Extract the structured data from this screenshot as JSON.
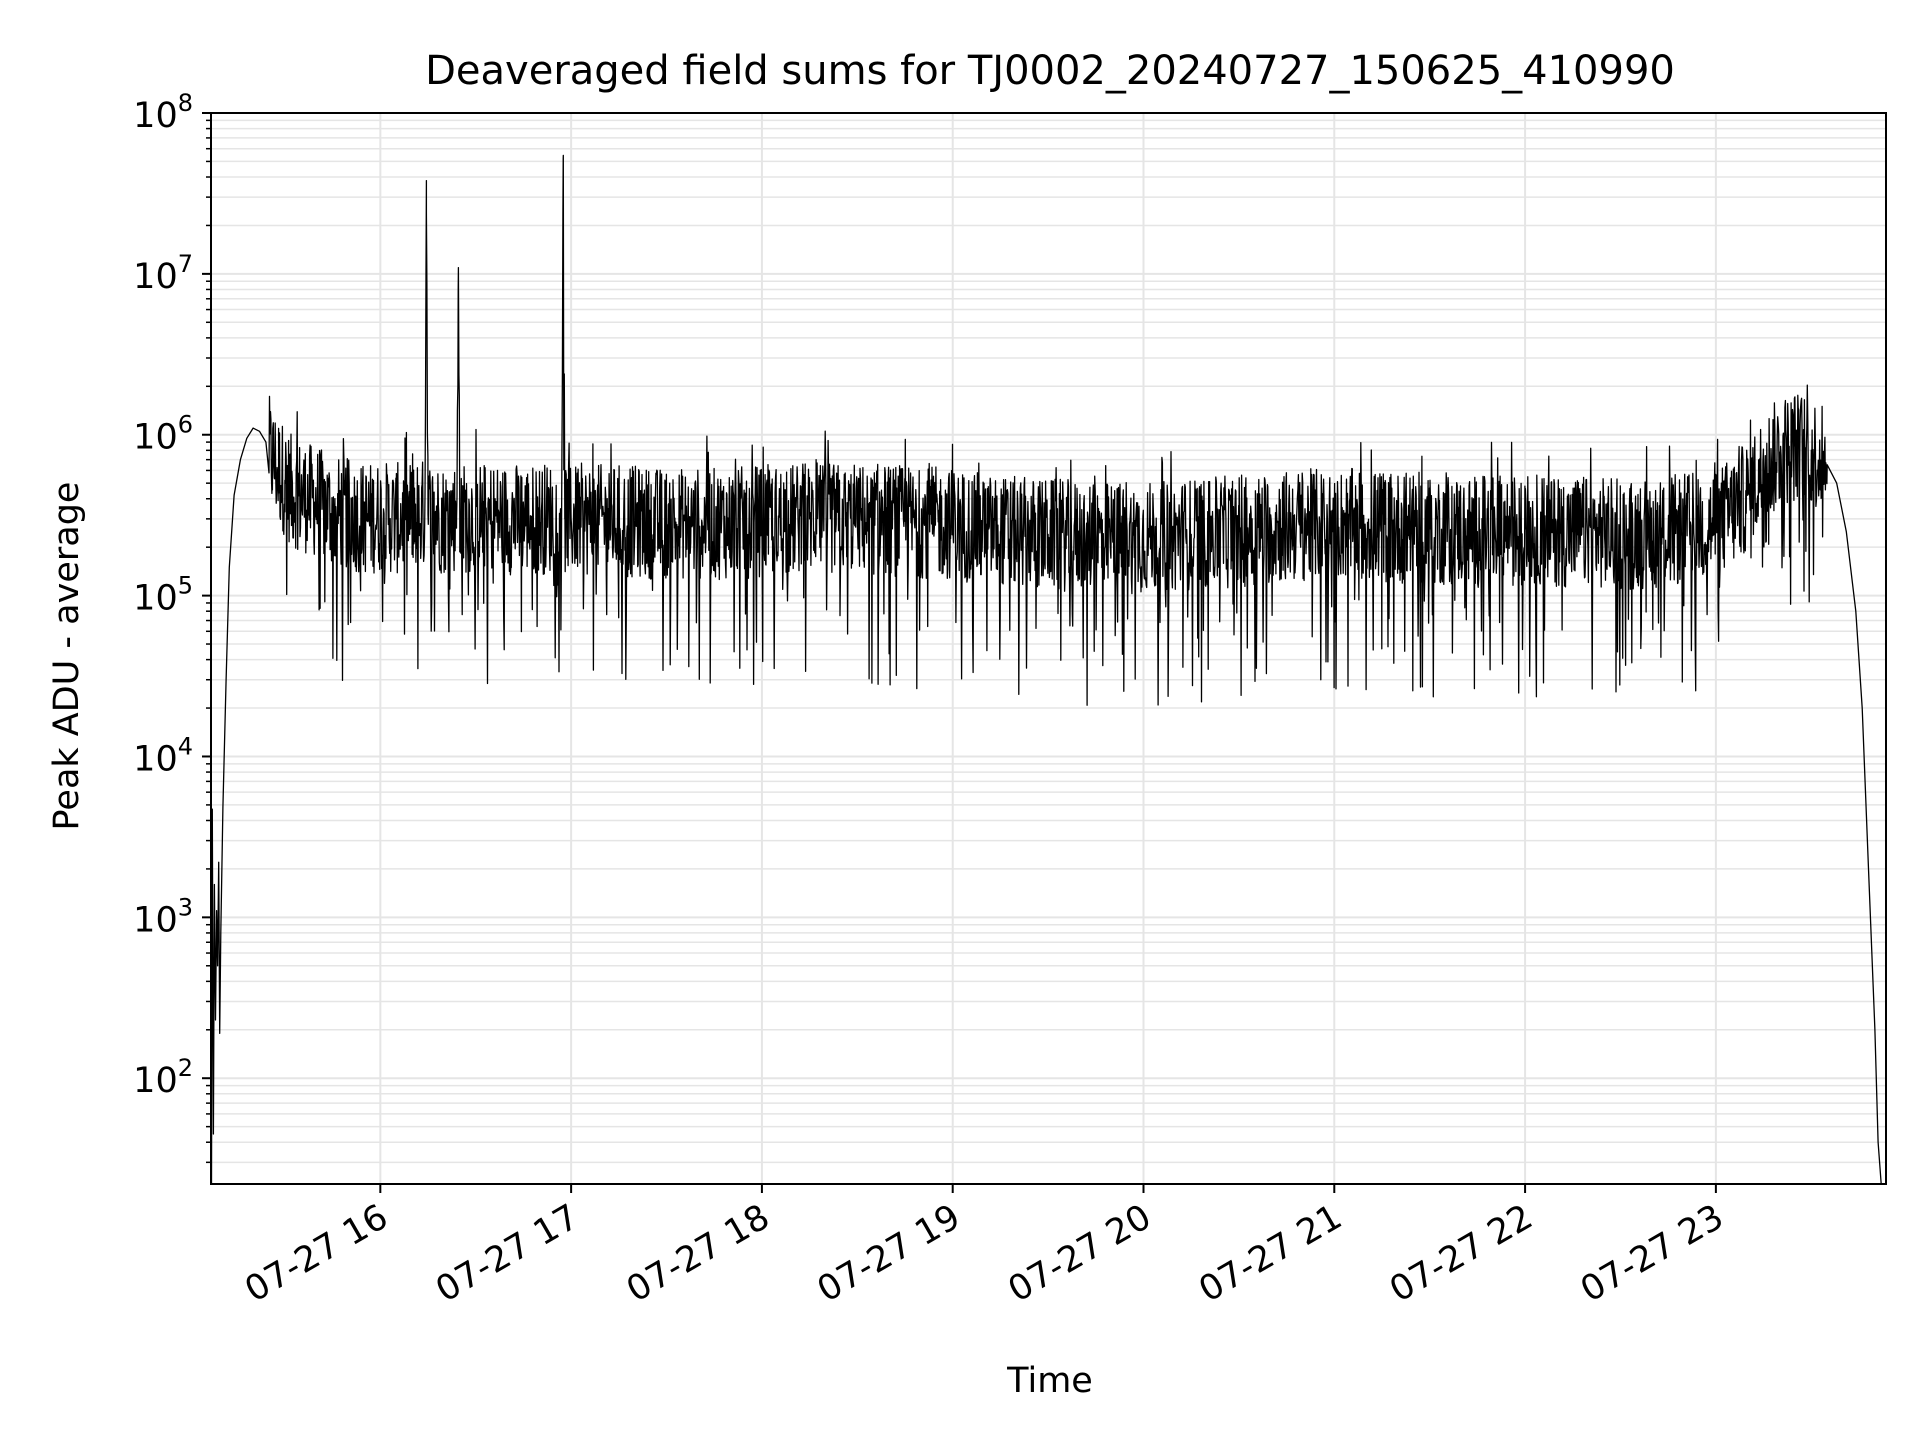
{
  "chart_data": {
    "type": "line",
    "title": "Deaveraged field sums for TJ0002_20240727_150625_410990",
    "xlabel": "Time",
    "ylabel": "Peak ADU - average",
    "yscale": "log",
    "ylim": [
      22,
      100000000
    ],
    "xlim": [
      "2024-07-27 15:06:45",
      "2024-07-27 23:53:30"
    ],
    "grid": true,
    "line_color": "#000000",
    "grid_color": "#e5e5e5",
    "x_ticks": [
      {
        "value": "2024-07-27 16:00",
        "label": "07-27 16"
      },
      {
        "value": "2024-07-27 17:00",
        "label": "07-27 17"
      },
      {
        "value": "2024-07-27 18:00",
        "label": "07-27 18"
      },
      {
        "value": "2024-07-27 19:00",
        "label": "07-27 19"
      },
      {
        "value": "2024-07-27 20:00",
        "label": "07-27 20"
      },
      {
        "value": "2024-07-27 21:00",
        "label": "07-27 21"
      },
      {
        "value": "2024-07-27 22:00",
        "label": "07-27 22"
      },
      {
        "value": "2024-07-27 23:00",
        "label": "07-27 23"
      }
    ],
    "y_ticks": [
      {
        "value": 100,
        "base": "10",
        "exp": "2"
      },
      {
        "value": 1000,
        "base": "10",
        "exp": "3"
      },
      {
        "value": 10000,
        "base": "10",
        "exp": "4"
      },
      {
        "value": 100000,
        "base": "10",
        "exp": "5"
      },
      {
        "value": 1000000,
        "base": "10",
        "exp": "6"
      },
      {
        "value": 10000000,
        "base": "10",
        "exp": "7"
      },
      {
        "value": 100000000,
        "base": "10",
        "exp": "8"
      }
    ],
    "series": [
      {
        "x": [
          "2024-07-27 15:06:55",
          "2024-07-27 15:07:10",
          "2024-07-27 15:07:30",
          "2024-07-27 15:07:50",
          "2024-07-27 15:08:10",
          "2024-07-27 15:08:30",
          "2024-07-27 15:08:50",
          "2024-07-27 15:09:10",
          "2024-07-27 15:09:30",
          "2024-07-27 15:09:50",
          "2024-07-27 15:10:30",
          "2024-07-27 15:11:30",
          "2024-07-27 15:12:30",
          "2024-07-27 15:14:00",
          "2024-07-27 15:16:00",
          "2024-07-27 15:18:00",
          "2024-07-27 15:20:00",
          "2024-07-27 15:22:00",
          "2024-07-27 15:24:00",
          "2024-07-27 15:26:00",
          "2024-07-27 15:28:00",
          "2024-07-27 15:30:00",
          "2024-07-27 15:32:00",
          "2024-07-27 15:35:00",
          "2024-07-27 15:40:00",
          "2024-07-27 15:45:00",
          "2024-07-27 15:50:00",
          "2024-07-27 15:55:00",
          "2024-07-27 16:00:00",
          "2024-07-27 16:05:00",
          "2024-07-27 16:10:00",
          "2024-07-27 16:14:00",
          "2024-07-27 16:14:30",
          "2024-07-27 16:15:00",
          "2024-07-27 16:20:00",
          "2024-07-27 16:24:00",
          "2024-07-27 16:24:30",
          "2024-07-27 16:25:00",
          "2024-07-27 16:30:00",
          "2024-07-27 16:40:00",
          "2024-07-27 16:50:00",
          "2024-07-27 16:57:00",
          "2024-07-27 16:57:30",
          "2024-07-27 16:58:00",
          "2024-07-27 17:00:00",
          "2024-07-27 17:15:00",
          "2024-07-27 17:30:00",
          "2024-07-27 17:45:00",
          "2024-07-27 18:00:00",
          "2024-07-27 18:15:00",
          "2024-07-27 18:30:00",
          "2024-07-27 18:45:00",
          "2024-07-27 19:00:00",
          "2024-07-27 19:15:00",
          "2024-07-27 19:30:00",
          "2024-07-27 19:45:00",
          "2024-07-27 20:00:00",
          "2024-07-27 20:15:00",
          "2024-07-27 20:30:00",
          "2024-07-27 20:45:00",
          "2024-07-27 21:00:00",
          "2024-07-27 21:15:00",
          "2024-07-27 21:30:00",
          "2024-07-27 21:45:00",
          "2024-07-27 22:00:00",
          "2024-07-27 22:15:00",
          "2024-07-27 22:30:00",
          "2024-07-27 22:45:00",
          "2024-07-27 23:00:00",
          "2024-07-27 23:05:00",
          "2024-07-27 23:10:00",
          "2024-07-27 23:15:00",
          "2024-07-27 23:20:00",
          "2024-07-27 23:25:00",
          "2024-07-27 23:30:00",
          "2024-07-27 23:35:00",
          "2024-07-27 23:38:00",
          "2024-07-27 23:41:00",
          "2024-07-27 23:44:00",
          "2024-07-27 23:46:00",
          "2024-07-27 23:48:00",
          "2024-07-27 23:50:00",
          "2024-07-27 23:51:00",
          "2024-07-27 23:52:00"
        ],
        "values": [
          22,
          4700,
          45,
          1600,
          230,
          1100,
          500,
          2200,
          190,
          800,
          4800,
          30000,
          150000,
          420000,
          700000,
          950000,
          1100000,
          1050000,
          900000,
          700000,
          600000,
          520000,
          450000,
          420000,
          380000,
          330000,
          320000,
          300000,
          310000,
          300000,
          310000,
          320000,
          38000000,
          320000,
          300000,
          310000,
          8000000,
          300000,
          310000,
          300000,
          300000,
          310000,
          52000000,
          300000,
          300000,
          290000,
          280000,
          280000,
          290000,
          300000,
          300000,
          290000,
          280000,
          250000,
          240000,
          230000,
          230000,
          240000,
          250000,
          270000,
          280000,
          270000,
          260000,
          250000,
          260000,
          250000,
          240000,
          250000,
          280000,
          330000,
          420000,
          600000,
          780000,
          850000,
          800000,
          650000,
          500000,
          250000,
          80000,
          20000,
          2000,
          200,
          40,
          22
        ]
      }
    ]
  }
}
